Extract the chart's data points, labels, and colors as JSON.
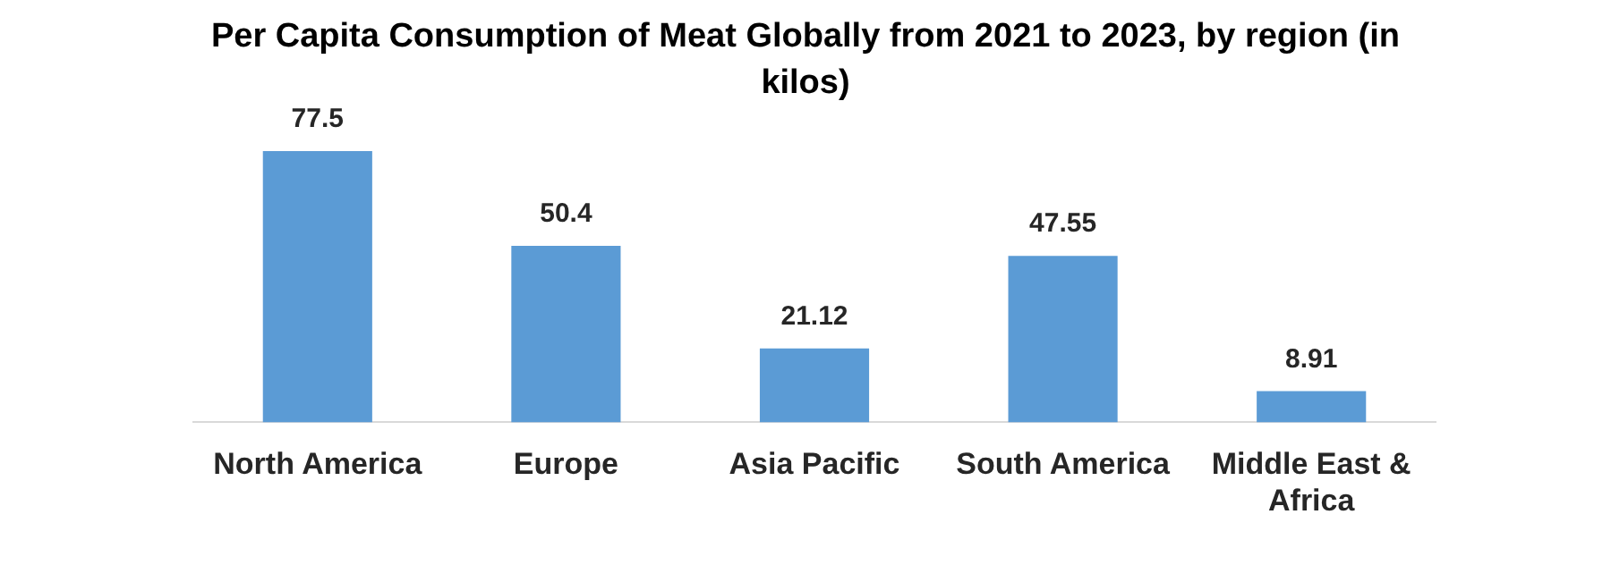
{
  "chart_data": {
    "type": "bar",
    "title": "Per Capita Consumption of Meat Globally from 2021 to 2023, by region (in kilos)",
    "categories": [
      "North America",
      "Europe",
      "Asia Pacific",
      "South America",
      "Middle East & Africa"
    ],
    "values": [
      77.5,
      50.4,
      21.12,
      47.55,
      8.91
    ],
    "color": "#5b9bd5",
    "data_labels": true,
    "grid": false,
    "legend": false
  }
}
